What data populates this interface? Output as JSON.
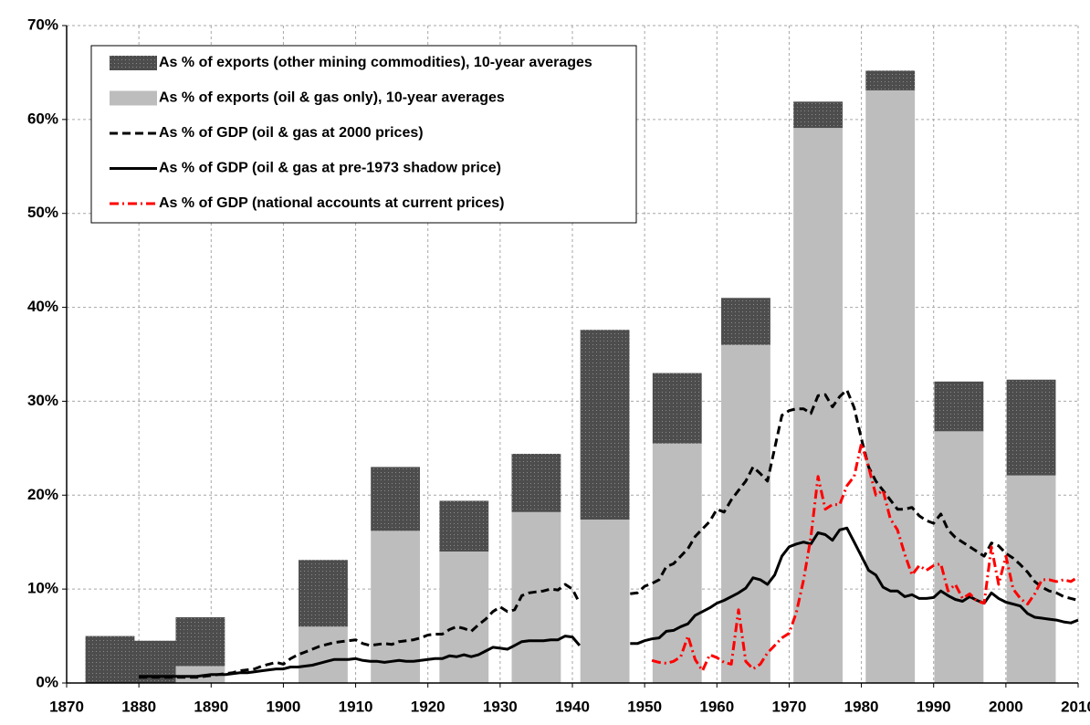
{
  "chart_data": {
    "type": "combo",
    "xlim": [
      1870,
      2010
    ],
    "ylim": [
      0,
      70
    ],
    "xticks": [
      1870,
      1880,
      1890,
      1900,
      1910,
      1920,
      1930,
      1940,
      1950,
      1960,
      1970,
      1980,
      1990,
      2000,
      2010
    ],
    "yticks": [
      {
        "value": 0,
        "label": "0%"
      },
      {
        "value": 10,
        "label": "10%"
      },
      {
        "value": 20,
        "label": "20%"
      },
      {
        "value": 30,
        "label": "30%"
      },
      {
        "value": 40,
        "label": "40%"
      },
      {
        "value": 50,
        "label": "50%"
      },
      {
        "value": 60,
        "label": "60%"
      },
      {
        "value": 70,
        "label": "70%"
      }
    ],
    "grid": true,
    "legend": "top-left",
    "x": [
      1880,
      1881,
      1882,
      1883,
      1884,
      1885,
      1886,
      1887,
      1888,
      1889,
      1890,
      1891,
      1892,
      1893,
      1894,
      1895,
      1896,
      1897,
      1898,
      1899,
      1900,
      1901,
      1902,
      1903,
      1904,
      1905,
      1906,
      1907,
      1908,
      1909,
      1910,
      1911,
      1912,
      1913,
      1914,
      1915,
      1916,
      1917,
      1918,
      1919,
      1920,
      1921,
      1922,
      1923,
      1924,
      1925,
      1926,
      1927,
      1928,
      1929,
      1930,
      1931,
      1932,
      1933,
      1934,
      1935,
      1936,
      1937,
      1938,
      1939,
      1940,
      1941,
      1942,
      1943,
      1944,
      1945,
      1946,
      1947,
      1948,
      1949,
      1950,
      1951,
      1952,
      1953,
      1954,
      1955,
      1956,
      1957,
      1958,
      1959,
      1960,
      1961,
      1962,
      1963,
      1964,
      1965,
      1966,
      1967,
      1968,
      1969,
      1970,
      1971,
      1972,
      1973,
      1974,
      1975,
      1976,
      1977,
      1978,
      1979,
      1980,
      1981,
      1982,
      1983,
      1984,
      1985,
      1986,
      1987,
      1988,
      1989,
      1990,
      1991,
      1992,
      1993,
      1994,
      1995,
      1996,
      1997,
      1998,
      1999,
      2000,
      2001,
      2002,
      2003,
      2004,
      2005,
      2006,
      2007,
      2008,
      2009,
      2010
    ],
    "series": [
      {
        "name": "As % of exports (other mining commodities), 10-year averages",
        "type": "bar",
        "color": "#4d4d4d",
        "x": [
          1876,
          1882.5,
          1888.5,
          1905.5,
          1915.5,
          1925,
          1935,
          1944.5,
          1954.5,
          1964,
          1974,
          1984,
          1993.5,
          2003.5
        ],
        "values": [
          5.0,
          4.5,
          5.2,
          7.1,
          6.8,
          5.4,
          6.2,
          20.2,
          7.5,
          5.0,
          2.8,
          2.1,
          5.3,
          10.2
        ]
      },
      {
        "name": "As % of exports (oil & gas only), 10-year averages",
        "type": "bar",
        "color": "#bdbdbd",
        "x": [
          1876,
          1882.5,
          1888.5,
          1905.5,
          1915.5,
          1925,
          1935,
          1944.5,
          1954.5,
          1964,
          1974,
          1984,
          1993.5,
          2003.5
        ],
        "values": [
          0,
          0,
          1.8,
          6.0,
          16.2,
          14.0,
          18.2,
          17.4,
          25.5,
          36.0,
          59.1,
          63.1,
          26.8,
          22.1
        ]
      },
      {
        "name": "As % of GDP (oil & gas at 2000 prices)",
        "type": "line",
        "dash": "dashed",
        "color": "#000000",
        "values": [
          0.6,
          0.6,
          0.6,
          0.6,
          0.6,
          0.6,
          0.6,
          0.6,
          0.6,
          0.7,
          0.8,
          0.9,
          1.0,
          1.1,
          1.3,
          1.4,
          1.5,
          1.8,
          2.0,
          2.2,
          2.0,
          2.6,
          3.0,
          3.3,
          3.6,
          3.9,
          4.1,
          4.3,
          4.4,
          4.5,
          4.6,
          4.2,
          4.0,
          4.1,
          4.2,
          4.1,
          4.4,
          4.5,
          4.6,
          4.8,
          5.1,
          5.2,
          5.2,
          5.7,
          6.0,
          5.8,
          5.5,
          6.2,
          6.8,
          7.6,
          8.1,
          7.6,
          7.8,
          9.3,
          9.6,
          9.7,
          9.8,
          10.0,
          9.9,
          10.5,
          10.0,
          8.5,
          null,
          null,
          null,
          null,
          null,
          null,
          9.5,
          9.6,
          10.3,
          10.6,
          11.0,
          12.4,
          12.7,
          13.5,
          14.3,
          15.6,
          16.4,
          17.2,
          18.5,
          18.2,
          19.5,
          20.5,
          21.5,
          23.0,
          22.3,
          21.5,
          25.0,
          28.5,
          29.0,
          29.2,
          29.2,
          28.7,
          30.6,
          30.7,
          29.4,
          30.5,
          31.2,
          29.3,
          26.0,
          23.0,
          21.5,
          20.5,
          19.5,
          18.5,
          18.5,
          18.7,
          17.8,
          17.3,
          17.0,
          18.0,
          16.3,
          15.5,
          15.0,
          14.5,
          14.0,
          13.5,
          14.9,
          14.6,
          13.8,
          13.3,
          12.6,
          11.8,
          10.8,
          10.2,
          9.8,
          9.6,
          9.2,
          9.0,
          8.8
        ]
      },
      {
        "name": "As % of GDP (oil & gas at pre-1973 shadow price)",
        "type": "line",
        "dash": "solid",
        "color": "#000000",
        "values": [
          0.7,
          0.7,
          0.7,
          0.7,
          0.7,
          0.7,
          0.7,
          0.7,
          0.7,
          0.8,
          0.9,
          0.9,
          0.9,
          1.0,
          1.1,
          1.1,
          1.2,
          1.3,
          1.4,
          1.5,
          1.5,
          1.7,
          1.7,
          1.8,
          1.9,
          2.1,
          2.3,
          2.5,
          2.5,
          2.5,
          2.6,
          2.4,
          2.3,
          2.3,
          2.2,
          2.3,
          2.4,
          2.3,
          2.3,
          2.4,
          2.5,
          2.6,
          2.6,
          2.9,
          2.8,
          3.0,
          2.8,
          3.0,
          3.4,
          3.8,
          3.7,
          3.6,
          4.0,
          4.4,
          4.5,
          4.5,
          4.5,
          4.6,
          4.6,
          5.0,
          4.9,
          4.0,
          null,
          null,
          null,
          null,
          null,
          null,
          4.2,
          4.2,
          4.5,
          4.7,
          4.8,
          5.5,
          5.6,
          6.0,
          6.3,
          7.2,
          7.6,
          8.0,
          8.5,
          8.8,
          9.2,
          9.6,
          10.1,
          11.2,
          11.0,
          10.5,
          11.5,
          13.5,
          14.5,
          14.8,
          15.0,
          14.8,
          16.0,
          15.8,
          15.2,
          16.3,
          16.5,
          15.0,
          13.5,
          12.0,
          11.5,
          10.2,
          9.8,
          9.8,
          9.2,
          9.4,
          9.0,
          9.0,
          9.1,
          9.8,
          9.3,
          8.9,
          8.7,
          9.2,
          8.8,
          8.5,
          9.6,
          9.0,
          8.6,
          8.4,
          8.2,
          7.4,
          7.0,
          6.9,
          6.8,
          6.7,
          6.5,
          6.4,
          6.7
        ]
      },
      {
        "name": "As % of GDP (national accounts at current prices)",
        "type": "line",
        "dash": "dashdot",
        "color": "#ff0000",
        "values": [
          null,
          null,
          null,
          null,
          null,
          null,
          null,
          null,
          null,
          null,
          null,
          null,
          null,
          null,
          null,
          null,
          null,
          null,
          null,
          null,
          null,
          null,
          null,
          null,
          null,
          null,
          null,
          null,
          null,
          null,
          null,
          null,
          null,
          null,
          null,
          null,
          null,
          null,
          null,
          null,
          null,
          null,
          null,
          null,
          null,
          null,
          null,
          null,
          null,
          null,
          null,
          null,
          null,
          null,
          null,
          null,
          null,
          null,
          null,
          null,
          null,
          null,
          null,
          null,
          null,
          null,
          null,
          null,
          null,
          null,
          null,
          2.4,
          2.2,
          2.1,
          2.3,
          2.8,
          5.0,
          2.5,
          1.3,
          3.0,
          2.7,
          2.2,
          2.0,
          7.8,
          2.3,
          1.5,
          2.0,
          3.2,
          4.0,
          4.8,
          5.3,
          7.5,
          11.0,
          15.5,
          22.0,
          18.5,
          19.0,
          19.0,
          21.0,
          22.0,
          25.5,
          23.0,
          20.0,
          20.5,
          17.5,
          16.3,
          13.7,
          11.5,
          12.5,
          12.0,
          12.5,
          12.7,
          9.8,
          10.5,
          9.0,
          9.5,
          8.7,
          8.5,
          14.5,
          10.5,
          13.5,
          10.0,
          9.0,
          8.4,
          9.5,
          11.0,
          11.0,
          10.8,
          11.0,
          10.8,
          11.3
        ]
      }
    ]
  }
}
